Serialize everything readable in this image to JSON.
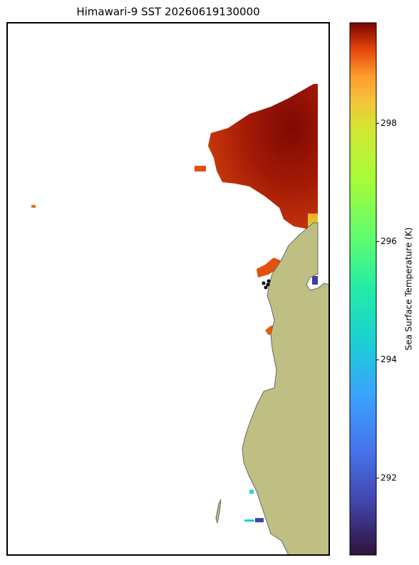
{
  "chart_data": {
    "type": "map",
    "title": "Himawari-9 SST 20260619130000",
    "colorbar": {
      "label": "Sea Surface Temperature (K)",
      "clim": [
        290.7,
        299.7
      ],
      "ticks": [
        292,
        294,
        296,
        298
      ],
      "colormap": "turbo"
    },
    "land_color": "#bfbf83"
  }
}
